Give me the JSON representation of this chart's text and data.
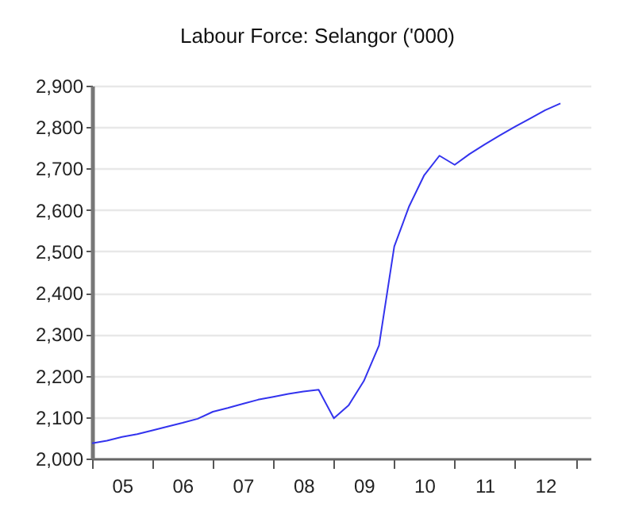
{
  "chart_data": {
    "type": "line",
    "title": "Labour Force: Selangor ('000)",
    "x": [
      "2005-01",
      "2005-04",
      "2005-07",
      "2005-10",
      "2006-01",
      "2006-04",
      "2006-07",
      "2006-10",
      "2007-01",
      "2007-04",
      "2007-07",
      "2007-10",
      "2008-01",
      "2008-04",
      "2008-07",
      "2008-10",
      "2009-01",
      "2009-04",
      "2009-07",
      "2009-10",
      "2010-01",
      "2010-04",
      "2010-07",
      "2010-10",
      "2011-01",
      "2011-04",
      "2011-07",
      "2011-10",
      "2012-01",
      "2012-04",
      "2012-07",
      "2012-10"
    ],
    "series": [
      {
        "color": "#3333ee",
        "values": [
          2037,
          2043,
          2052,
          2059,
          2068,
          2077,
          2086,
          2096,
          2113,
          2122,
          2132,
          2142,
          2149,
          2156,
          2162,
          2166,
          2097,
          2129,
          2187,
          2273,
          2512,
          2609,
          2684,
          2731,
          2709,
          2735,
          2758,
          2780,
          2801,
          2821,
          2841,
          2857
        ]
      }
    ],
    "xlim": [
      "2005-01",
      "2013-04"
    ],
    "xticks": [
      {
        "value": "2005-01",
        "label": null
      },
      {
        "value": "2005-07",
        "label": "05"
      },
      {
        "value": "2006-01",
        "label": null
      },
      {
        "value": "2006-07",
        "label": "06"
      },
      {
        "value": "2007-01",
        "label": null
      },
      {
        "value": "2007-07",
        "label": "07"
      },
      {
        "value": "2008-01",
        "label": null
      },
      {
        "value": "2008-07",
        "label": "08"
      },
      {
        "value": "2009-01",
        "label": null
      },
      {
        "value": "2009-07",
        "label": "09"
      },
      {
        "value": "2010-01",
        "label": null
      },
      {
        "value": "2010-07",
        "label": "10"
      },
      {
        "value": "2011-01",
        "label": null
      },
      {
        "value": "2011-07",
        "label": "11"
      },
      {
        "value": "2012-01",
        "label": null
      },
      {
        "value": "2012-07",
        "label": "12"
      },
      {
        "value": "2013-01",
        "label": null
      }
    ],
    "ylim": [
      2000,
      2900
    ],
    "yticks": [
      {
        "value": 2000,
        "label": "2,000"
      },
      {
        "value": 2100,
        "label": "2,100"
      },
      {
        "value": 2200,
        "label": "2,200"
      },
      {
        "value": 2300,
        "label": "2,300"
      },
      {
        "value": 2400,
        "label": "2,400"
      },
      {
        "value": 2500,
        "label": "2,500"
      },
      {
        "value": 2600,
        "label": "2,600"
      },
      {
        "value": 2700,
        "label": "2,700"
      },
      {
        "value": 2800,
        "label": "2,800"
      },
      {
        "value": 2900,
        "label": "2,900"
      }
    ],
    "grid": "y",
    "marker": "none",
    "line_style": "solid"
  }
}
